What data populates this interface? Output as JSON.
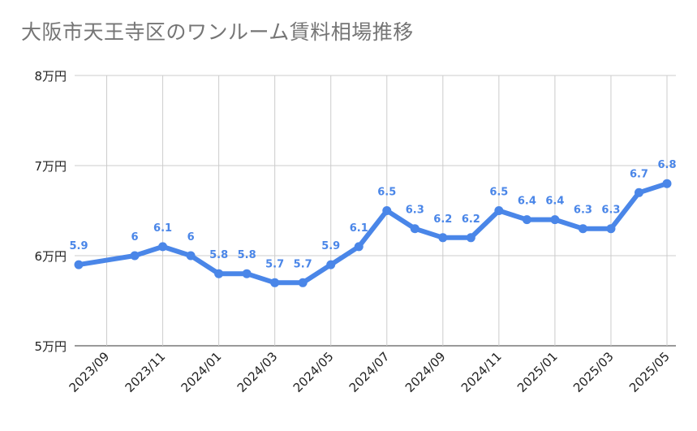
{
  "chart_data": {
    "type": "line",
    "title": "大阪市天王寺区のワンルーム賃料相場推移",
    "xlabel": "",
    "ylabel": "",
    "ylim": [
      5,
      8
    ],
    "yticks": [
      {
        "value": 8,
        "label": "8万円"
      },
      {
        "value": 7,
        "label": "7万円"
      },
      {
        "value": 6,
        "label": "6万円"
      },
      {
        "value": 5,
        "label": "5万円"
      }
    ],
    "x_tick_labels": [
      "2023/09",
      "2023/11",
      "2024/01",
      "2024/03",
      "2024/05",
      "2024/07",
      "2024/09",
      "2024/11",
      "2025/01",
      "2025/03",
      "2025/05"
    ],
    "grid": true,
    "line_color": "#4a86e8",
    "series": [
      {
        "points": [
          {
            "x": "2023/08",
            "y": 5.9,
            "label": "5.9"
          },
          {
            "x": "2023/10",
            "y": 6.0,
            "label": "6"
          },
          {
            "x": "2023/11",
            "y": 6.1,
            "label": "6.1"
          },
          {
            "x": "2023/12",
            "y": 6.0,
            "label": "6"
          },
          {
            "x": "2024/01",
            "y": 5.8,
            "label": "5.8"
          },
          {
            "x": "2024/02",
            "y": 5.8,
            "label": "5.8"
          },
          {
            "x": "2024/03",
            "y": 5.7,
            "label": "5.7"
          },
          {
            "x": "2024/04",
            "y": 5.7,
            "label": "5.7"
          },
          {
            "x": "2024/05",
            "y": 5.9,
            "label": "5.9"
          },
          {
            "x": "2024/06",
            "y": 6.1,
            "label": "6.1"
          },
          {
            "x": "2024/07",
            "y": 6.5,
            "label": "6.5"
          },
          {
            "x": "2024/08",
            "y": 6.3,
            "label": "6.3"
          },
          {
            "x": "2024/09",
            "y": 6.2,
            "label": "6.2"
          },
          {
            "x": "2024/10",
            "y": 6.2,
            "label": "6.2"
          },
          {
            "x": "2024/11",
            "y": 6.5,
            "label": "6.5"
          },
          {
            "x": "2024/12",
            "y": 6.4,
            "label": "6.4"
          },
          {
            "x": "2025/01",
            "y": 6.4,
            "label": "6.4"
          },
          {
            "x": "2025/02",
            "y": 6.3,
            "label": "6.3"
          },
          {
            "x": "2025/03",
            "y": 6.3,
            "label": "6.3"
          },
          {
            "x": "2025/04",
            "y": 6.7,
            "label": "6.7"
          },
          {
            "x": "2025/05",
            "y": 6.8,
            "label": "6.8"
          }
        ]
      }
    ]
  }
}
